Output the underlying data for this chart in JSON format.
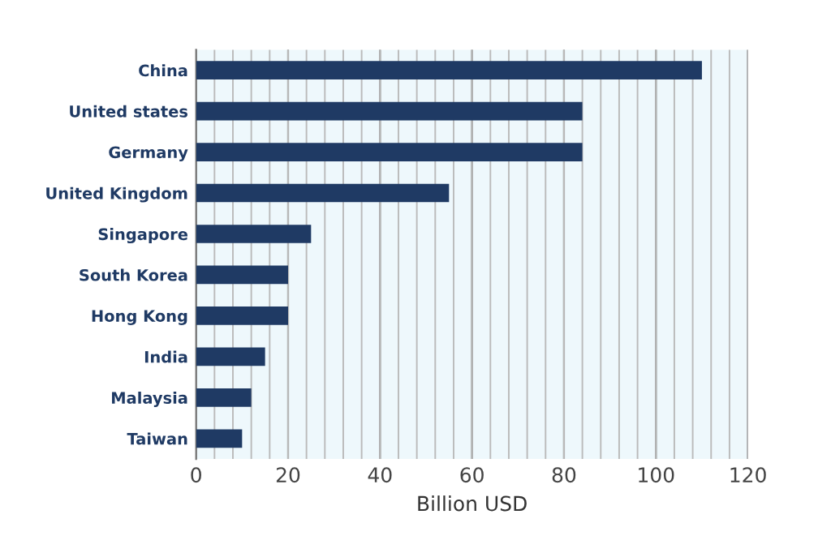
{
  "chart_data": {
    "type": "bar",
    "orientation": "horizontal",
    "xlabel": "Billion USD",
    "categories": [
      "China",
      "United states",
      "Germany",
      "United Kingdom",
      "Singapore",
      "South Korea",
      "Hong Kong",
      "India",
      "Malaysia",
      "Taiwan"
    ],
    "values": [
      110,
      84,
      84,
      55,
      25,
      20,
      20,
      15,
      12,
      10
    ],
    "color": "#1f3a64",
    "xlim": [
      0,
      120
    ],
    "xticks": [
      0,
      {
        "value": 4,
        "label": null
      },
      {
        "value": 8,
        "label": null
      },
      {
        "value": 12,
        "label": null
      },
      {
        "value": 16,
        "label": null
      },
      20,
      {
        "value": 24,
        "label": null
      },
      {
        "value": 28,
        "label": null
      },
      {
        "value": 32,
        "label": null
      },
      {
        "value": 36,
        "label": null
      },
      40,
      {
        "value": 44,
        "label": null
      },
      {
        "value": 48,
        "label": null
      },
      {
        "value": 52,
        "label": null
      },
      {
        "value": 56,
        "label": null
      },
      60,
      {
        "value": 64,
        "label": null
      },
      {
        "value": 68,
        "label": null
      },
      {
        "value": 72,
        "label": null
      },
      {
        "value": 76,
        "label": null
      },
      80,
      {
        "value": 84,
        "label": null
      },
      {
        "value": 88,
        "label": null
      },
      {
        "value": 92,
        "label": null
      },
      {
        "value": 96,
        "label": null
      },
      100,
      {
        "value": 104,
        "label": null
      },
      {
        "value": 108,
        "label": null
      },
      {
        "value": 112,
        "label": null
      },
      {
        "value": 116,
        "label": null
      },
      120
    ],
    "grid": "x"
  }
}
